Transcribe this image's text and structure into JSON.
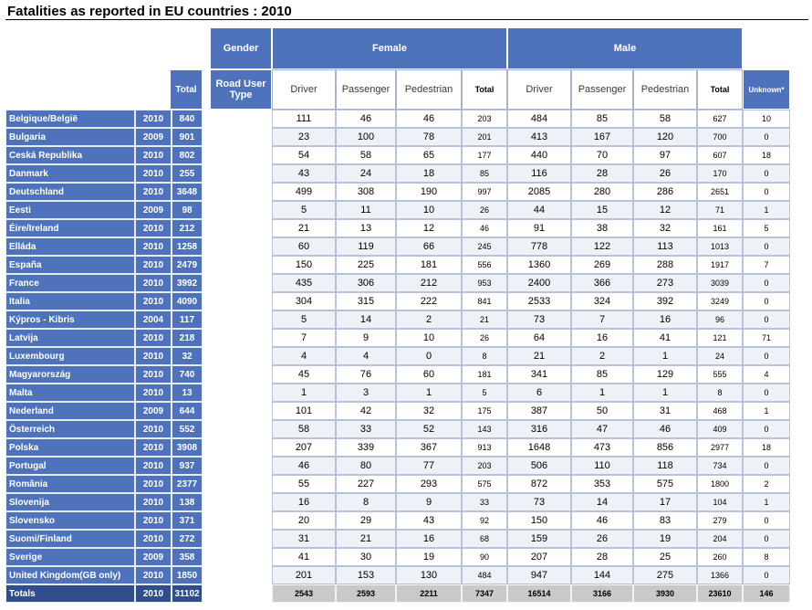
{
  "title": "Fatalities as reported in EU countries : 2010",
  "headers": {
    "gender": "Gender",
    "female": "Female",
    "male": "Male",
    "total": "Total",
    "road_user_type": "Road User Type",
    "unknown": "Unknown*",
    "sub": [
      "Driver",
      "Passenger",
      "Pedestrian",
      "Total",
      "Driver",
      "Passenger",
      "Pedestrian",
      "Total"
    ]
  },
  "rows": [
    {
      "country": "Belgique/België",
      "year": "2010",
      "total": "840",
      "values": [
        "111",
        "46",
        "46",
        "203",
        "484",
        "85",
        "58",
        "627",
        "10"
      ]
    },
    {
      "country": "Bulgaria",
      "year": "2009",
      "total": "901",
      "values": [
        "23",
        "100",
        "78",
        "201",
        "413",
        "167",
        "120",
        "700",
        "0"
      ]
    },
    {
      "country": "Ceská Republika",
      "year": "2010",
      "total": "802",
      "values": [
        "54",
        "58",
        "65",
        "177",
        "440",
        "70",
        "97",
        "607",
        "18"
      ]
    },
    {
      "country": "Danmark",
      "year": "2010",
      "total": "255",
      "values": [
        "43",
        "24",
        "18",
        "85",
        "116",
        "28",
        "26",
        "170",
        "0"
      ]
    },
    {
      "country": "Deutschland",
      "year": "2010",
      "total": "3648",
      "values": [
        "499",
        "308",
        "190",
        "997",
        "2085",
        "280",
        "286",
        "2651",
        "0"
      ]
    },
    {
      "country": "Eesti",
      "year": "2009",
      "total": "98",
      "values": [
        "5",
        "11",
        "10",
        "26",
        "44",
        "15",
        "12",
        "71",
        "1"
      ]
    },
    {
      "country": "Éire/Ireland",
      "year": "2010",
      "total": "212",
      "values": [
        "21",
        "13",
        "12",
        "46",
        "91",
        "38",
        "32",
        "161",
        "5"
      ]
    },
    {
      "country": "Elláda",
      "year": "2010",
      "total": "1258",
      "values": [
        "60",
        "119",
        "66",
        "245",
        "778",
        "122",
        "113",
        "1013",
        "0"
      ]
    },
    {
      "country": "España",
      "year": "2010",
      "total": "2479",
      "values": [
        "150",
        "225",
        "181",
        "556",
        "1360",
        "269",
        "288",
        "1917",
        "7"
      ]
    },
    {
      "country": "France",
      "year": "2010",
      "total": "3992",
      "values": [
        "435",
        "306",
        "212",
        "953",
        "2400",
        "366",
        "273",
        "3039",
        "0"
      ]
    },
    {
      "country": "Italia",
      "year": "2010",
      "total": "4090",
      "values": [
        "304",
        "315",
        "222",
        "841",
        "2533",
        "324",
        "392",
        "3249",
        "0"
      ]
    },
    {
      "country": "Kýpros - Kibris",
      "year": "2004",
      "total": "117",
      "values": [
        "5",
        "14",
        "2",
        "21",
        "73",
        "7",
        "16",
        "96",
        "0"
      ]
    },
    {
      "country": "Latvija",
      "year": "2010",
      "total": "218",
      "values": [
        "7",
        "9",
        "10",
        "26",
        "64",
        "16",
        "41",
        "121",
        "71"
      ]
    },
    {
      "country": "Luxembourg",
      "year": "2010",
      "total": "32",
      "values": [
        "4",
        "4",
        "0",
        "8",
        "21",
        "2",
        "1",
        "24",
        "0"
      ]
    },
    {
      "country": "Magyarország",
      "year": "2010",
      "total": "740",
      "values": [
        "45",
        "76",
        "60",
        "181",
        "341",
        "85",
        "129",
        "555",
        "4"
      ]
    },
    {
      "country": "Malta",
      "year": "2010",
      "total": "13",
      "values": [
        "1",
        "3",
        "1",
        "5",
        "6",
        "1",
        "1",
        "8",
        "0"
      ]
    },
    {
      "country": "Nederland",
      "year": "2009",
      "total": "644",
      "values": [
        "101",
        "42",
        "32",
        "175",
        "387",
        "50",
        "31",
        "468",
        "1"
      ]
    },
    {
      "country": "Österreich",
      "year": "2010",
      "total": "552",
      "values": [
        "58",
        "33",
        "52",
        "143",
        "316",
        "47",
        "46",
        "409",
        "0"
      ]
    },
    {
      "country": "Polska",
      "year": "2010",
      "total": "3908",
      "values": [
        "207",
        "339",
        "367",
        "913",
        "1648",
        "473",
        "856",
        "2977",
        "18"
      ]
    },
    {
      "country": "Portugal",
      "year": "2010",
      "total": "937",
      "values": [
        "46",
        "80",
        "77",
        "203",
        "506",
        "110",
        "118",
        "734",
        "0"
      ]
    },
    {
      "country": "România",
      "year": "2010",
      "total": "2377",
      "values": [
        "55",
        "227",
        "293",
        "575",
        "872",
        "353",
        "575",
        "1800",
        "2"
      ]
    },
    {
      "country": "Slovenija",
      "year": "2010",
      "total": "138",
      "values": [
        "16",
        "8",
        "9",
        "33",
        "73",
        "14",
        "17",
        "104",
        "1"
      ]
    },
    {
      "country": "Slovensko",
      "year": "2010",
      "total": "371",
      "values": [
        "20",
        "29",
        "43",
        "92",
        "150",
        "46",
        "83",
        "279",
        "0"
      ]
    },
    {
      "country": "Suomi/Finland",
      "year": "2010",
      "total": "272",
      "values": [
        "31",
        "21",
        "16",
        "68",
        "159",
        "26",
        "19",
        "204",
        "0"
      ]
    },
    {
      "country": "Sverige",
      "year": "2009",
      "total": "358",
      "values": [
        "41",
        "30",
        "19",
        "90",
        "207",
        "28",
        "25",
        "260",
        "8"
      ]
    },
    {
      "country": "United Kingdom(GB only)",
      "year": "2010",
      "total": "1850",
      "values": [
        "201",
        "153",
        "130",
        "484",
        "947",
        "144",
        "275",
        "1366",
        "0"
      ]
    }
  ],
  "totals": {
    "label": "Totals",
    "year": "2010",
    "total": "31102",
    "values": [
      "2543",
      "2593",
      "2211",
      "7347",
      "16514",
      "3166",
      "3930",
      "23610",
      "146"
    ]
  },
  "colors": {
    "header_blue": "#4f72bd",
    "totals_dark": "#2f4d8a",
    "totals_grey": "#c9c9c9"
  }
}
